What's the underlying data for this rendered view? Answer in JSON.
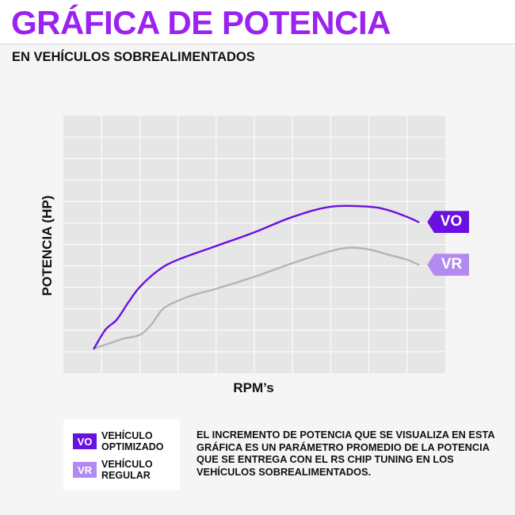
{
  "header": {
    "title": "GRÁFICA DE POTENCIA",
    "subtitle": "EN VEHÍCULOS SOBREALIMENTADOS"
  },
  "colors": {
    "title": "#9b22f0",
    "vo": "#6a10e0",
    "vr": "#b38af0",
    "vr_line": "#b4b4b4",
    "plot_bg": "#e6e6e6",
    "grid": "#ffffff"
  },
  "chart_data": {
    "type": "line",
    "title": "",
    "xlabel": "RPM’s",
    "ylabel": "POTENCIA (HP)",
    "xlim": [
      0,
      10
    ],
    "ylim": [
      0,
      12
    ],
    "x_gridlines": 10,
    "y_gridlines": 12,
    "grid": true,
    "series": [
      {
        "name": "VO",
        "legend": "VEHÍCULO OPTIMIZADO",
        "x": [
          0.8,
          1.1,
          1.4,
          1.7,
          2.0,
          2.5,
          3.0,
          4.0,
          5.0,
          6.0,
          7.0,
          8.0,
          8.5,
          9.0,
          9.3
        ],
        "y": [
          0.0,
          1.1,
          1.7,
          2.7,
          3.6,
          4.6,
          5.2,
          6.0,
          6.8,
          7.7,
          8.3,
          8.3,
          8.1,
          7.7,
          7.4
        ]
      },
      {
        "name": "VR",
        "legend": "VEHÍCULO REGULAR",
        "x": [
          0.8,
          1.2,
          1.6,
          2.0,
          2.3,
          2.6,
          3.0,
          3.5,
          4.0,
          5.0,
          6.0,
          7.0,
          7.5,
          8.0,
          8.5,
          9.0,
          9.3
        ],
        "y": [
          0.0,
          0.3,
          0.6,
          0.8,
          1.4,
          2.3,
          2.8,
          3.2,
          3.5,
          4.2,
          5.0,
          5.7,
          5.9,
          5.8,
          5.5,
          5.2,
          4.9
        ]
      }
    ]
  },
  "legend": {
    "vo_badge": "VO",
    "vo_label": "VEHÍCULO OPTIMIZADO",
    "vr_badge": "VR",
    "vr_label": "VEHÍCULO REGULAR"
  },
  "note": "EL INCREMENTO DE POTENCIA QUE SE VISUALIZA EN ESTA GRÁFICA ES UN PARÁMETRO PROMEDIO DE LA POTENCIA QUE SE ENTREGA CON EL RS CHIP TUNING EN LOS VEHÍCULOS SOBREALIMENTADOS."
}
